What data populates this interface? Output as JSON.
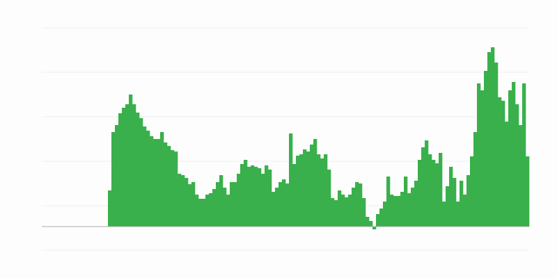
{
  "chart_data": {
    "type": "bar",
    "title": "",
    "xlabel": "",
    "ylabel": "",
    "grid": true,
    "ylim": [
      -34,
      286
    ],
    "gridlines": [
      286,
      222,
      158,
      94,
      30,
      -34
    ],
    "bar_color": "#39b04b",
    "baseline_color": "#aaaaaa",
    "grid_color": "#eeeeee",
    "leading_empty_bars": 19,
    "values": [
      52,
      136,
      146,
      163,
      171,
      176,
      190,
      176,
      164,
      156,
      144,
      138,
      130,
      126,
      126,
      136,
      121,
      116,
      110,
      108,
      76,
      74,
      70,
      61,
      64,
      46,
      40,
      40,
      46,
      48,
      54,
      64,
      74,
      56,
      46,
      64,
      64,
      76,
      90,
      96,
      86,
      88,
      86,
      84,
      76,
      88,
      82,
      50,
      56,
      64,
      68,
      62,
      134,
      90,
      102,
      104,
      111,
      108,
      118,
      126,
      104,
      98,
      104,
      82,
      41,
      38,
      52,
      46,
      42,
      46,
      56,
      64,
      62,
      41,
      14,
      8,
      -4,
      18,
      26,
      36,
      72,
      46,
      44,
      44,
      50,
      72,
      48,
      56,
      66,
      96,
      114,
      124,
      104,
      96,
      91,
      106,
      36,
      58,
      86,
      70,
      36,
      66,
      46,
      74,
      101,
      136,
      206,
      196,
      224,
      251,
      258,
      236,
      186,
      181,
      151,
      196,
      208,
      176,
      146,
      206,
      101
    ]
  }
}
